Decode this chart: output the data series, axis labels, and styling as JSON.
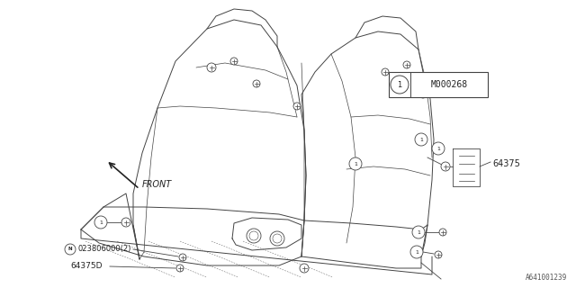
{
  "bg_color": "#ffffff",
  "fig_width": 6.4,
  "fig_height": 3.2,
  "dpi": 100,
  "line_color": "#444444",
  "text_color": "#222222",
  "part_number_box": "M000268",
  "label_64375": "64375",
  "label_64375D": "64375D",
  "label_N": "023806000(2)",
  "label_front": "FRONT",
  "footnote": "A641001239",
  "seat_lw": 0.7,
  "detail_lw": 0.5
}
